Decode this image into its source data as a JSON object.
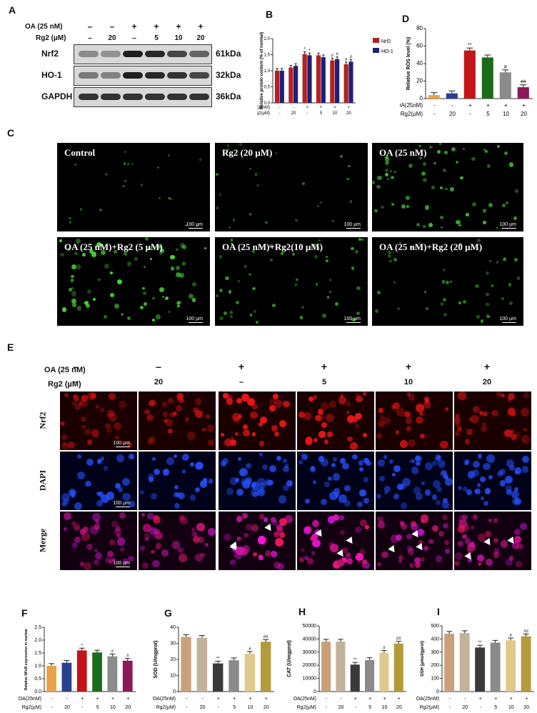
{
  "panels": {
    "A": "A",
    "B": "B",
    "C": "C",
    "D": "D",
    "E": "E",
    "F": "F",
    "G": "G",
    "H": "H",
    "I": "I"
  },
  "blot": {
    "oa_label": "OA (25 nM)",
    "rg2_label": "Rg2 (µM)",
    "oa_signs": [
      "–",
      "–",
      "+",
      "+",
      "+",
      "+"
    ],
    "rg2_vals": [
      "–",
      "20",
      "–",
      "5",
      "10",
      "20"
    ],
    "rows": [
      {
        "name": "Nrf2",
        "kda": "61kDa",
        "intensity": [
          0.35,
          0.32,
          0.9,
          0.85,
          0.7,
          0.55
        ]
      },
      {
        "name": "HO-1",
        "kda": "32kDa",
        "intensity": [
          0.45,
          0.4,
          0.9,
          0.85,
          0.8,
          0.7
        ]
      },
      {
        "name": "GAPDH",
        "kda": "36kDa",
        "intensity": [
          0.8,
          0.8,
          0.8,
          0.8,
          0.8,
          0.8
        ]
      }
    ]
  },
  "microC": {
    "titles": [
      "Control",
      "Rg2 (20 µM)",
      "OA (25 nM)",
      "OA (25 nM)+Rg2 (5 µM)",
      "OA (25 nM)+Rg2(10 µM)",
      "OA (25 nM)+Rg2 (20 µM)"
    ],
    "scale": "100 µm",
    "density": [
      0.15,
      0.18,
      0.75,
      0.9,
      0.55,
      0.45
    ]
  },
  "microE": {
    "oa_label": "OA (25 nM)",
    "rg2_label": "Rg2 (µM)",
    "oa_signs": [
      "–",
      "–",
      "+",
      "+",
      "+",
      "+"
    ],
    "rg2_vals": [
      "–",
      "20",
      "–",
      "5",
      "10",
      "20"
    ],
    "rows": [
      "Nrf2",
      "DAPI",
      "Merge"
    ],
    "scale": "100 µm"
  },
  "chart_data": [
    {
      "panel": "B",
      "type": "bar",
      "ylabel": "Relative protein content (% of normal)",
      "ylim": [
        0,
        2.0
      ],
      "yticks": [
        "0.0",
        "0.5",
        "1.0",
        "1.5",
        "2.0"
      ],
      "xrow1_label": "OA(25nM)",
      "xrow1": [
        "-",
        "-",
        "+",
        "+",
        "+",
        "+"
      ],
      "xrow2_label": "Rg2(µM)",
      "xrow2": [
        "-",
        "20",
        "-",
        "5",
        "10",
        "20"
      ],
      "series": [
        {
          "name": "Nrf2",
          "color": "#b22222",
          "values": [
            1.0,
            1.1,
            1.52,
            1.48,
            1.32,
            1.2
          ],
          "marks": [
            "",
            "",
            "*",
            "",
            "#",
            "#"
          ]
        },
        {
          "name": "HO-1",
          "color": "#1f1f7a",
          "values": [
            1.0,
            1.15,
            1.48,
            1.42,
            1.36,
            1.28
          ],
          "marks": [
            "",
            "",
            "*",
            "",
            "#",
            "#"
          ]
        }
      ]
    },
    {
      "panel": "D",
      "type": "bar",
      "ylabel": "Relative ROS level (%)",
      "ylim": [
        0,
        80
      ],
      "yticks": [
        "0",
        "20",
        "40",
        "60",
        "80"
      ],
      "xrow1_label": "OA(25nM)",
      "xrow1": [
        "-",
        "-",
        "+",
        "+",
        "+",
        "+"
      ],
      "xrow2_label": "Rg2(µM)",
      "xrow2": [
        "-",
        "20",
        "-",
        "5",
        "10",
        "20"
      ],
      "values": [
        4,
        6,
        55,
        47,
        30,
        13
      ],
      "marks": [
        "",
        "",
        "**",
        "",
        "#",
        "##"
      ],
      "colors": [
        "#e8a24a",
        "#2a3f8f",
        "#c0161a",
        "#1b6b1b",
        "#8c8c8c",
        "#8b1a56"
      ]
    },
    {
      "panel": "F",
      "type": "bar",
      "ylabel": "Relative NFκB expression in nuclear",
      "ylim": [
        0,
        2.5
      ],
      "yticks": [
        "0.0",
        "0.5",
        "1.0",
        "1.5",
        "2.0",
        "2.5"
      ],
      "xrow1_label": "OA(25nM)",
      "xrow1": [
        "-",
        "-",
        "+",
        "+",
        "+",
        "+"
      ],
      "xrow2_label": "Rg2(µM)",
      "xrow2": [
        "-",
        "20",
        "-",
        "5",
        "10",
        "20"
      ],
      "values": [
        1.0,
        1.12,
        1.6,
        1.52,
        1.37,
        1.2
      ],
      "marks": [
        "",
        "",
        "*",
        "",
        "#",
        "#"
      ],
      "colors": [
        "#e8a24a",
        "#2a3f8f",
        "#c0161a",
        "#1b6b1b",
        "#8c8c8c",
        "#8b1a56"
      ]
    },
    {
      "panel": "G",
      "type": "bar",
      "ylabel": "SOD (U/mgprot)",
      "ylim": [
        0,
        40
      ],
      "yticks": [
        "0",
        "10",
        "20",
        "30",
        "40"
      ],
      "xrow1_label": "OA(25nM)",
      "xrow1": [
        "-",
        "-",
        "+",
        "+",
        "+",
        "+"
      ],
      "xrow2_label": "Rg2(µM)",
      "xrow2": [
        "-",
        "20",
        "-",
        "5",
        "10",
        "20"
      ],
      "values": [
        34,
        33.5,
        17.5,
        19.5,
        23.5,
        31
      ],
      "marks": [
        "",
        "",
        "**",
        "",
        "#",
        "##"
      ],
      "colors": [
        "#c9a07a",
        "#c2b29a",
        "#3a3a3a",
        "#8a8a8a",
        "#e0c98a",
        "#b39a3a"
      ]
    },
    {
      "panel": "H",
      "type": "bar",
      "ylabel": "CAT (U/mgprot)",
      "ylim": [
        0,
        50000
      ],
      "yticks": [
        "0",
        "10000",
        "20000",
        "30000",
        "40000",
        "50000"
      ],
      "xrow1_label": "OA(25nM)",
      "xrow1": [
        "-",
        "-",
        "+",
        "+",
        "+",
        "+"
      ],
      "xrow2_label": "Rg2(µM)",
      "xrow2": [
        "-",
        "20",
        "-",
        "5",
        "10",
        "20"
      ],
      "values": [
        38000,
        38000,
        20500,
        24000,
        29500,
        36500
      ],
      "marks": [
        "",
        "",
        "**",
        "",
        "#",
        "##"
      ],
      "colors": [
        "#c9a07a",
        "#c2b29a",
        "#3a3a3a",
        "#8a8a8a",
        "#e0c98a",
        "#b39a3a"
      ]
    },
    {
      "panel": "I",
      "type": "bar",
      "ylabel": "GSH (μmol/gprot)",
      "ylim": [
        0,
        500
      ],
      "yticks": [
        "0",
        "100",
        "200",
        "300",
        "400",
        "500"
      ],
      "xrow1_label": "OA(25nM)",
      "xrow1": [
        "-",
        "-",
        "+",
        "+",
        "+",
        "+"
      ],
      "xrow2_label": "Rg2(µM)",
      "xrow2": [
        "-",
        "20",
        "-",
        "5",
        "10",
        "20"
      ],
      "values": [
        440,
        445,
        335,
        372,
        390,
        420
      ],
      "marks": [
        "",
        "",
        "**",
        "",
        "#",
        "##"
      ],
      "colors": [
        "#c9a07a",
        "#c2b29a",
        "#3a3a3a",
        "#8a8a8a",
        "#e0c98a",
        "#b39a3a"
      ]
    }
  ]
}
